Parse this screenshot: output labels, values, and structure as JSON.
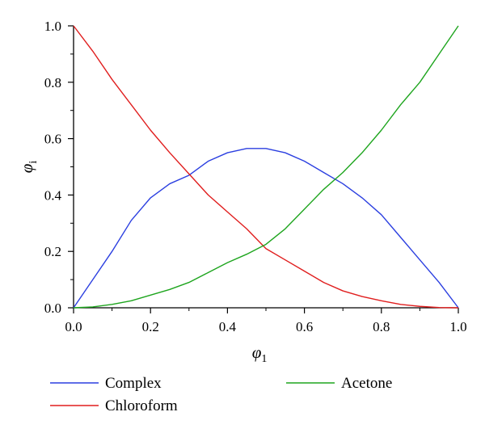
{
  "chart_data": {
    "type": "line",
    "title": "",
    "xlabel": {
      "symbol": "φ",
      "sub": "1"
    },
    "ylabel": {
      "symbol": "φ",
      "sub": "i"
    },
    "xlim": [
      0,
      1
    ],
    "ylim": [
      0,
      1
    ],
    "xticks": [
      "0.0",
      "0.2",
      "0.4",
      "0.6",
      "0.8",
      "1.0"
    ],
    "yticks": [
      "0.0",
      "0.2",
      "0.4",
      "0.6",
      "0.8",
      "1.0"
    ],
    "grid": false,
    "legend": "below",
    "x": [
      0,
      0.05,
      0.1,
      0.15,
      0.2,
      0.25,
      0.3,
      0.35,
      0.4,
      0.45,
      0.5,
      0.55,
      0.6,
      0.65,
      0.7,
      0.75,
      0.8,
      0.85,
      0.9,
      0.95,
      1.0
    ],
    "series": [
      {
        "name": "Complex",
        "color": "#2b3fe0",
        "values": [
          0,
          0.1,
          0.2,
          0.31,
          0.39,
          0.44,
          0.47,
          0.52,
          0.55,
          0.565,
          0.565,
          0.55,
          0.52,
          0.48,
          0.44,
          0.39,
          0.33,
          0.25,
          0.17,
          0.09,
          0
        ]
      },
      {
        "name": "Chloroform",
        "color": "#e01e1e",
        "values": [
          1.0,
          0.91,
          0.81,
          0.72,
          0.63,
          0.55,
          0.475,
          0.4,
          0.34,
          0.28,
          0.21,
          0.17,
          0.13,
          0.09,
          0.06,
          0.04,
          0.025,
          0.012,
          0.005,
          0.001,
          0
        ]
      },
      {
        "name": "Acetone",
        "color": "#1ea51e",
        "values": [
          0,
          0.003,
          0.012,
          0.025,
          0.045,
          0.065,
          0.09,
          0.125,
          0.16,
          0.19,
          0.225,
          0.28,
          0.35,
          0.42,
          0.48,
          0.55,
          0.63,
          0.72,
          0.8,
          0.9,
          1.0
        ]
      }
    ]
  }
}
